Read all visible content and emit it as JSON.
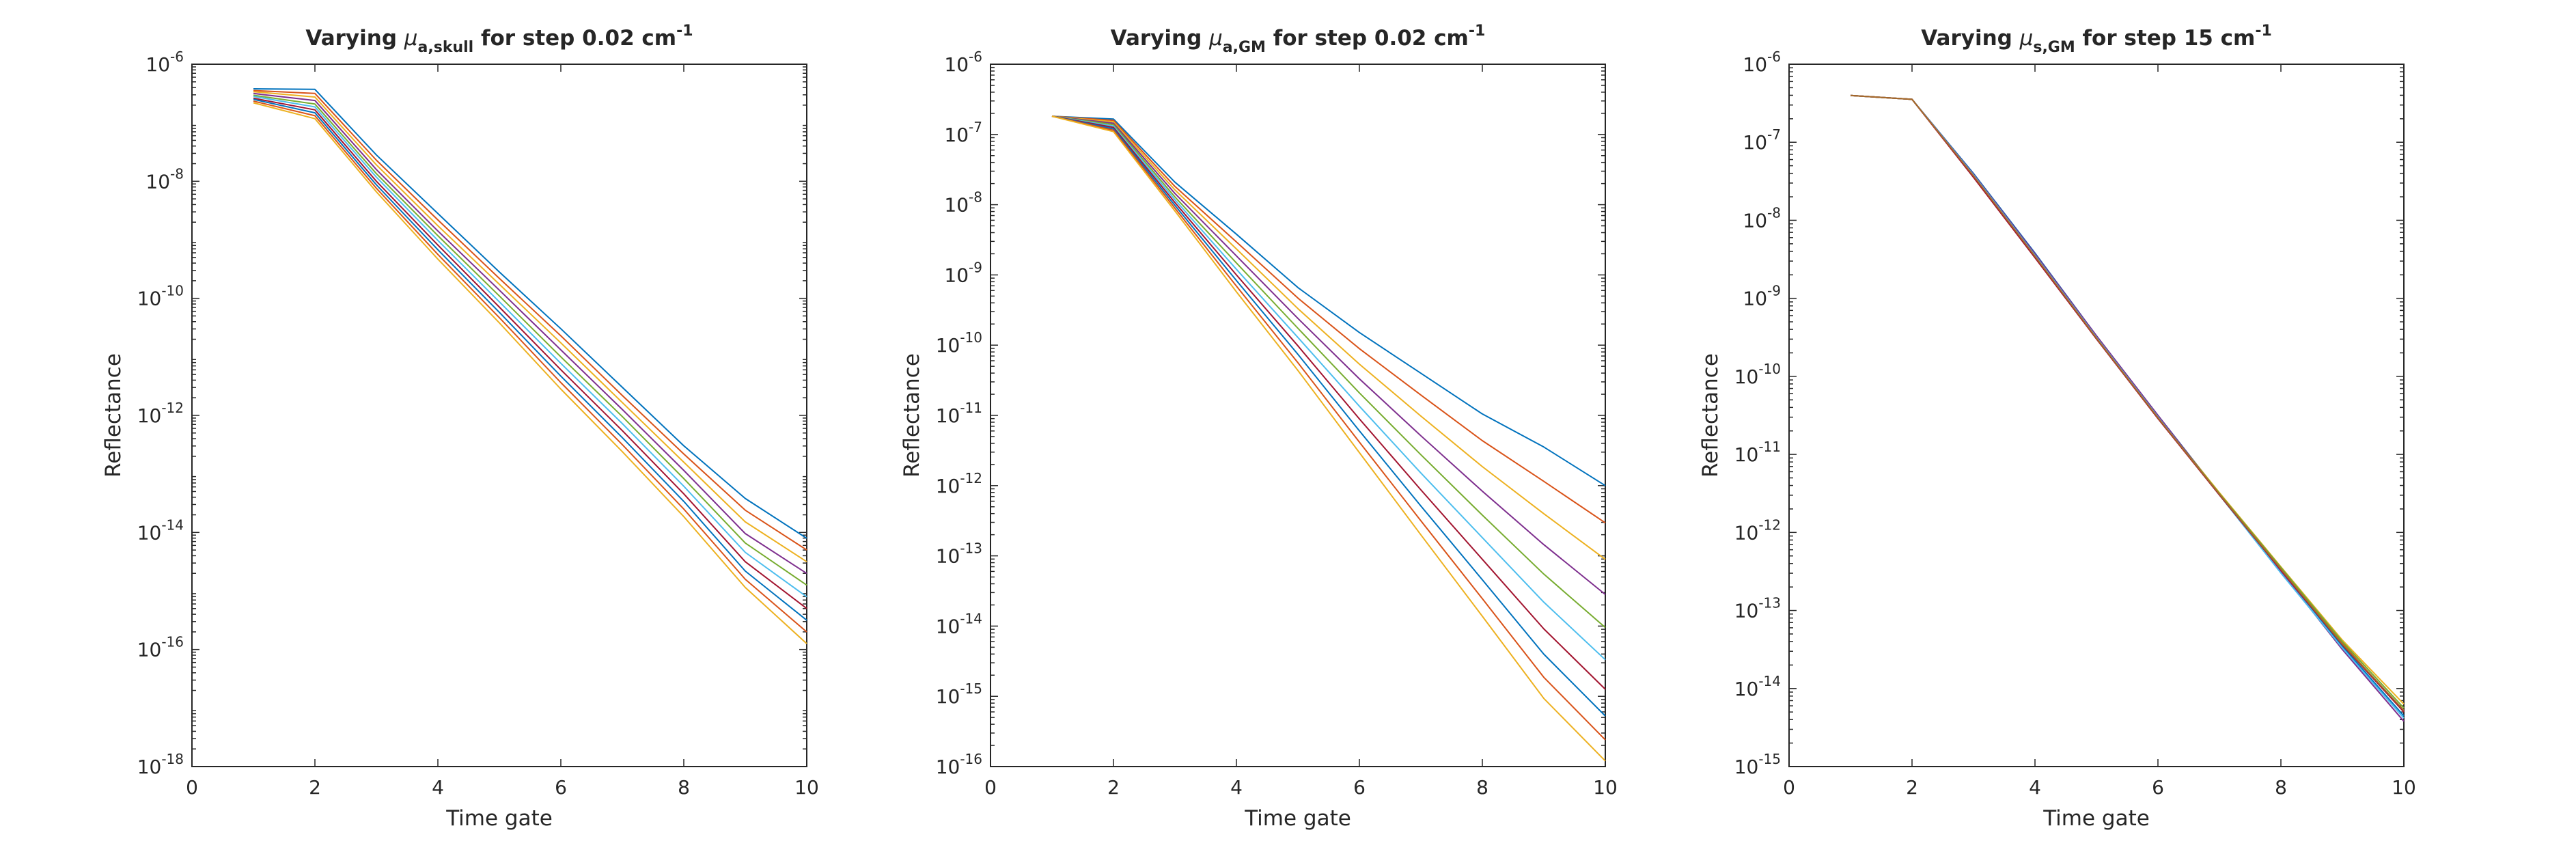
{
  "chart_data": [
    {
      "type": "line",
      "title": {
        "pre": "Varying ",
        "sym": "μ",
        "sub": "a,skull",
        "post": " for step 0.02 cm",
        "sup": "-1"
      },
      "xlabel": "Time gate",
      "ylabel": "Reflectance",
      "xlim": [
        0,
        10
      ],
      "xticks": [
        0,
        2,
        4,
        6,
        8,
        10
      ],
      "yscale": "log",
      "ylim_exp": [
        -18,
        -6
      ],
      "yticks_exp": [
        -18,
        -16,
        -14,
        -12,
        -10,
        -8,
        -6
      ],
      "x": [
        1,
        2,
        3,
        4,
        5,
        6,
        7,
        8,
        9,
        10
      ],
      "series_log10": [
        {
          "color": "#0072bd",
          "values": [
            -6.42,
            -6.43,
            -7.55,
            -8.55,
            -9.55,
            -10.52,
            -11.52,
            -12.52,
            -13.42,
            -14.1
          ]
        },
        {
          "color": "#d95319",
          "values": [
            -6.45,
            -6.5,
            -7.64,
            -8.66,
            -9.66,
            -10.64,
            -11.66,
            -12.66,
            -13.62,
            -14.3
          ]
        },
        {
          "color": "#edb120",
          "values": [
            -6.47,
            -6.56,
            -7.72,
            -8.76,
            -9.76,
            -10.76,
            -11.78,
            -12.8,
            -13.82,
            -14.5
          ]
        },
        {
          "color": "#7e2f8e",
          "values": [
            -6.5,
            -6.62,
            -7.8,
            -8.85,
            -9.86,
            -10.88,
            -11.9,
            -12.94,
            -14.02,
            -14.7
          ]
        },
        {
          "color": "#77ac30",
          "values": [
            -6.53,
            -6.68,
            -7.87,
            -8.93,
            -9.96,
            -11.0,
            -12.02,
            -13.08,
            -14.18,
            -14.9
          ]
        },
        {
          "color": "#4dbeee",
          "values": [
            -6.55,
            -6.73,
            -7.93,
            -9.01,
            -10.06,
            -11.11,
            -12.14,
            -13.21,
            -14.34,
            -15.1
          ]
        },
        {
          "color": "#a2142f",
          "values": [
            -6.58,
            -6.78,
            -8.0,
            -9.09,
            -10.15,
            -11.22,
            -12.26,
            -13.34,
            -14.5,
            -15.3
          ]
        },
        {
          "color": "#0072bd",
          "values": [
            -6.6,
            -6.83,
            -8.06,
            -9.17,
            -10.24,
            -11.33,
            -12.38,
            -13.47,
            -14.66,
            -15.5
          ]
        },
        {
          "color": "#d95319",
          "values": [
            -6.63,
            -6.88,
            -8.12,
            -9.25,
            -10.33,
            -11.44,
            -12.5,
            -13.6,
            -14.8,
            -15.7
          ]
        },
        {
          "color": "#edb120",
          "values": [
            -6.66,
            -6.93,
            -8.18,
            -9.33,
            -10.42,
            -11.55,
            -12.62,
            -13.73,
            -14.94,
            -15.9
          ]
        }
      ]
    },
    {
      "type": "line",
      "title": {
        "pre": "Varying ",
        "sym": "μ",
        "sub": "a,GM",
        "post": " for step 0.02 cm",
        "sup": "-1"
      },
      "xlabel": "Time gate",
      "ylabel": "Reflectance",
      "xlim": [
        0,
        10
      ],
      "xticks": [
        0,
        2,
        4,
        6,
        8,
        10
      ],
      "yscale": "log",
      "ylim_exp": [
        -16,
        -6
      ],
      "yticks_exp": [
        -16,
        -15,
        -14,
        -13,
        -12,
        -11,
        -10,
        -9,
        -8,
        -7,
        -6
      ],
      "x": [
        1,
        2,
        3,
        4,
        5,
        6,
        7,
        8,
        9,
        10
      ],
      "series_log10": [
        {
          "color": "#0072bd",
          "values": [
            -6.74,
            -6.78,
            -7.68,
            -8.42,
            -9.18,
            -9.82,
            -10.4,
            -10.98,
            -11.45,
            -12.0
          ]
        },
        {
          "color": "#d95319",
          "values": [
            -6.74,
            -6.8,
            -7.74,
            -8.53,
            -9.33,
            -10.05,
            -10.71,
            -11.36,
            -11.94,
            -12.53
          ]
        },
        {
          "color": "#edb120",
          "values": [
            -6.74,
            -6.82,
            -7.79,
            -8.63,
            -9.48,
            -10.27,
            -11.01,
            -11.73,
            -12.4,
            -13.05
          ]
        },
        {
          "color": "#7e2f8e",
          "values": [
            -6.74,
            -6.84,
            -7.84,
            -8.73,
            -9.62,
            -10.48,
            -11.29,
            -12.08,
            -12.84,
            -13.55
          ]
        },
        {
          "color": "#77ac30",
          "values": [
            -6.74,
            -6.86,
            -7.89,
            -8.83,
            -9.76,
            -10.68,
            -11.56,
            -12.42,
            -13.26,
            -14.02
          ]
        },
        {
          "color": "#4dbeee",
          "values": [
            -6.74,
            -6.88,
            -7.93,
            -8.92,
            -9.89,
            -10.87,
            -11.82,
            -12.74,
            -13.66,
            -14.48
          ]
        },
        {
          "color": "#a2142f",
          "values": [
            -6.74,
            -6.9,
            -7.97,
            -9.0,
            -10.01,
            -11.05,
            -12.06,
            -13.05,
            -14.04,
            -14.9
          ]
        },
        {
          "color": "#0072bd",
          "values": [
            -6.74,
            -6.92,
            -8.01,
            -9.08,
            -10.13,
            -11.22,
            -12.29,
            -13.34,
            -14.4,
            -15.28
          ]
        },
        {
          "color": "#d95319",
          "values": [
            -6.74,
            -6.94,
            -8.05,
            -9.16,
            -10.25,
            -11.38,
            -12.5,
            -13.61,
            -14.73,
            -15.62
          ]
        },
        {
          "color": "#edb120",
          "values": [
            -6.74,
            -6.96,
            -8.09,
            -9.24,
            -10.36,
            -11.53,
            -12.7,
            -13.86,
            -15.03,
            -15.92
          ]
        }
      ]
    },
    {
      "type": "line",
      "title": {
        "pre": "Varying ",
        "sym": "μ",
        "sub": "s,GM",
        "post": " for step 15 cm",
        "sup": "-1"
      },
      "xlabel": "Time gate",
      "ylabel": "Reflectance",
      "xlim": [
        0,
        10
      ],
      "xticks": [
        0,
        2,
        4,
        6,
        8,
        10
      ],
      "yscale": "log",
      "ylim_exp": [
        -15,
        -6
      ],
      "yticks_exp": [
        -15,
        -14,
        -13,
        -12,
        -11,
        -10,
        -9,
        -8,
        -7,
        -6
      ],
      "x": [
        1,
        2,
        3,
        4,
        5,
        6,
        7,
        8,
        9,
        10
      ],
      "series_log10": [
        {
          "color": "#0072bd",
          "values": [
            -6.4,
            -6.45,
            -7.4,
            -8.42,
            -9.48,
            -10.5,
            -11.5,
            -12.48,
            -13.46,
            -14.35
          ]
        },
        {
          "color": "#d95319",
          "values": [
            -6.4,
            -6.45,
            -7.42,
            -8.44,
            -9.49,
            -10.51,
            -11.5,
            -12.46,
            -13.42,
            -14.3
          ]
        },
        {
          "color": "#edb120",
          "values": [
            -6.4,
            -6.45,
            -7.43,
            -8.46,
            -9.5,
            -10.52,
            -11.49,
            -12.44,
            -13.38,
            -14.2
          ]
        },
        {
          "color": "#7e2f8e",
          "values": [
            -6.4,
            -6.45,
            -7.41,
            -8.43,
            -9.48,
            -10.5,
            -11.51,
            -12.5,
            -13.5,
            -14.42
          ]
        },
        {
          "color": "#77ac30",
          "values": [
            -6.4,
            -6.45,
            -7.44,
            -8.47,
            -9.51,
            -10.53,
            -11.5,
            -12.45,
            -13.4,
            -14.25
          ]
        },
        {
          "color": "#4dbeee",
          "values": [
            -6.4,
            -6.45,
            -7.42,
            -8.45,
            -9.5,
            -10.52,
            -11.52,
            -12.52,
            -13.48,
            -14.38
          ]
        },
        {
          "color": "#a2142f",
          "values": [
            -6.4,
            -6.45,
            -7.45,
            -8.48,
            -9.52,
            -10.54,
            -11.52,
            -12.48,
            -13.44,
            -14.3
          ]
        },
        {
          "color": "#a66b2a",
          "values": [
            -6.4,
            -6.45,
            -7.43,
            -8.46,
            -9.51,
            -10.53,
            -11.51,
            -12.47,
            -13.43,
            -14.28
          ]
        }
      ]
    }
  ]
}
